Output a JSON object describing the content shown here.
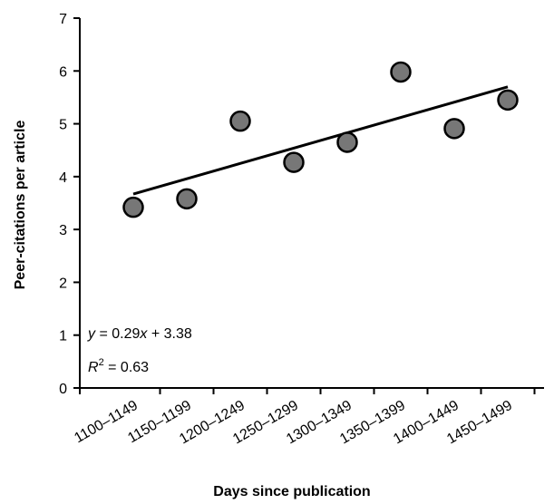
{
  "chart_data": {
    "type": "scatter",
    "xlabel": "Days since publication",
    "ylabel": "Peer-citations per article",
    "categories": [
      "1100–1149",
      "1150–1199",
      "1200–1249",
      "1250–1299",
      "1300–1349",
      "1350–1399",
      "1400–1449",
      "1450–1499"
    ],
    "values": [
      3.42,
      3.58,
      5.05,
      4.27,
      4.65,
      5.98,
      4.91,
      5.45
    ],
    "ylim": [
      0,
      7
    ],
    "yticks": [
      "0",
      "1",
      "2",
      "3",
      "4",
      "5",
      "6",
      "7"
    ],
    "trendline": {
      "slope": 0.29,
      "intercept": 3.38
    },
    "annotations": {
      "equation_y": "y",
      "equation_rest": " = 0.29",
      "equation_x": "x",
      "equation_tail": " + 3.38",
      "r2_label": "R",
      "r2_sup": "2",
      "r2_value": " = 0.63"
    },
    "grid": false,
    "legend": "none",
    "marker_color": "#777777",
    "marker_edge": "#000000",
    "line_color": "#000000"
  }
}
